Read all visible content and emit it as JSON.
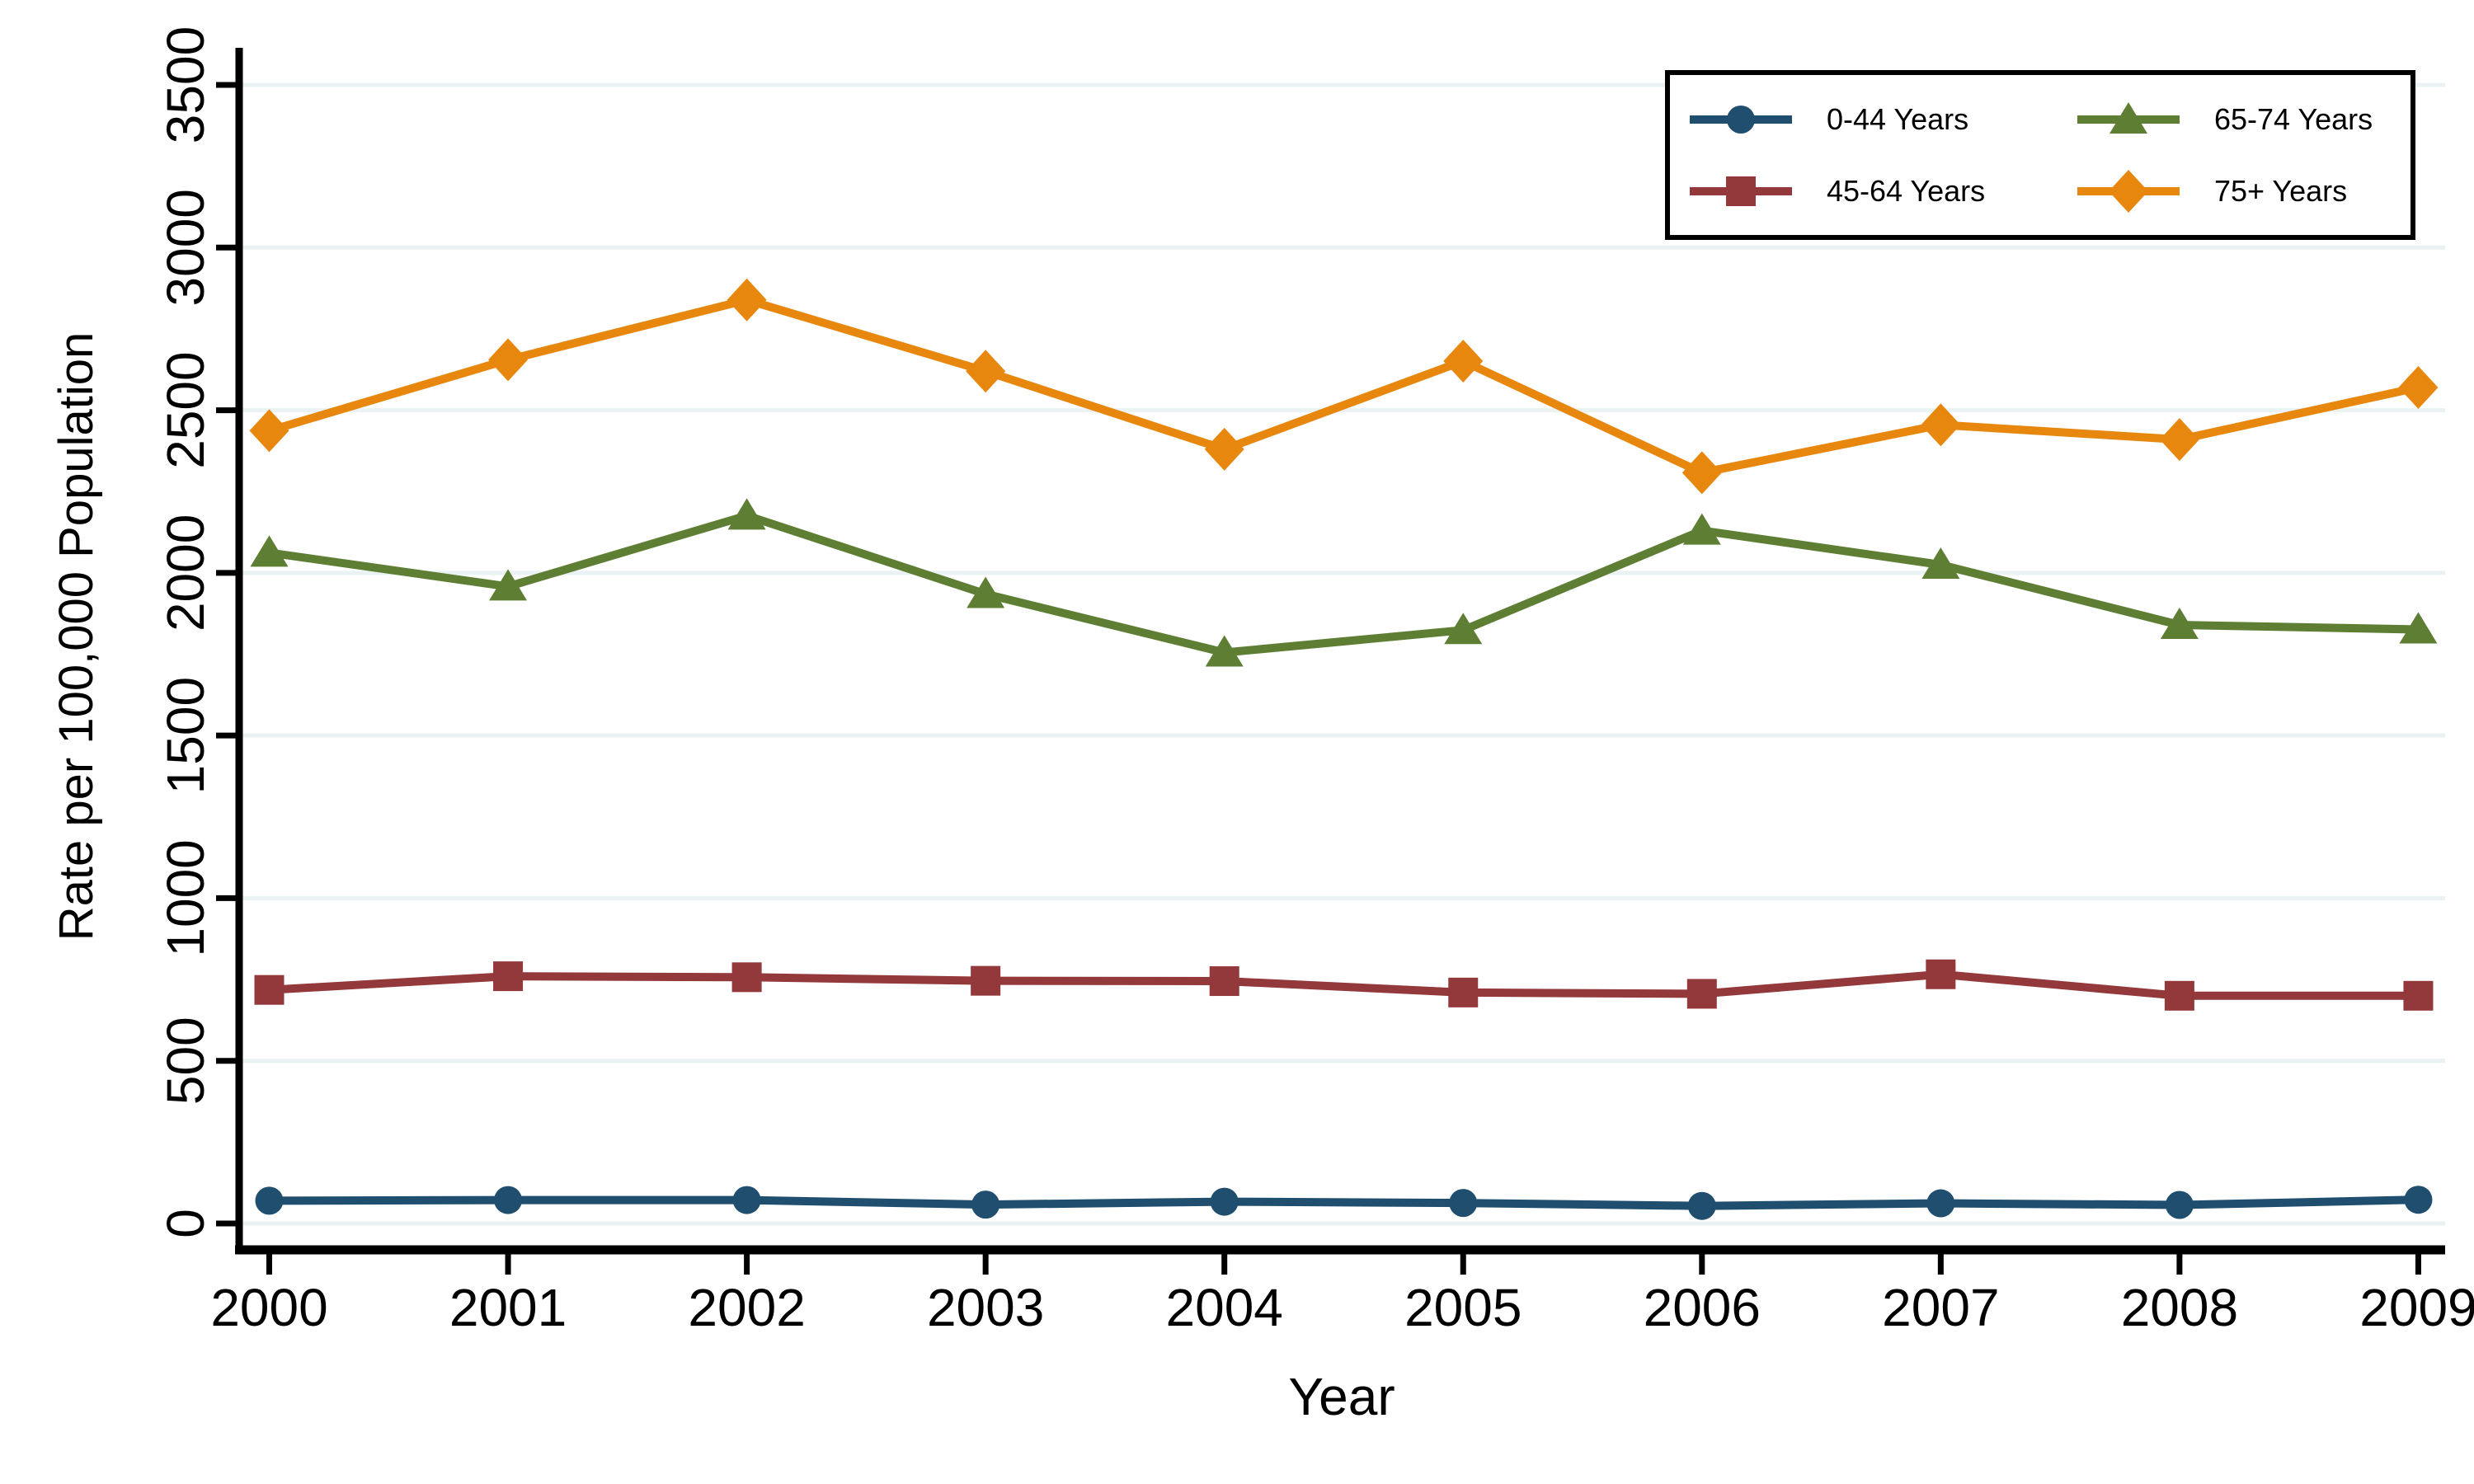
{
  "chart_data": {
    "type": "line",
    "title": "",
    "xlabel": "Year",
    "ylabel": "Rate per 100,000 Population",
    "x": [
      2000,
      2001,
      2002,
      2003,
      2004,
      2005,
      2006,
      2007,
      2008,
      2009
    ],
    "x_tick_labels": [
      "2000",
      "2001",
      "2002",
      "2003",
      "2004",
      "2005",
      "2006",
      "2007",
      "2008",
      "2009"
    ],
    "ylim": [
      0,
      3500
    ],
    "yticks": [
      0,
      500,
      1000,
      1500,
      2000,
      2500,
      3000,
      3500
    ],
    "y_tick_labels": [
      "0",
      "500",
      "1000",
      "1500",
      "2000",
      "2500",
      "3000",
      "3500"
    ],
    "grid": "horizontal-light",
    "legend_position": "top-right-inside",
    "background_color": "#ffffff",
    "gridline_color": "#EAF2F3",
    "axis_color": "#000000",
    "series": [
      {
        "name": "0-44 Years",
        "marker": "circle",
        "color": "#1F4E6E",
        "values": [
          70,
          72,
          72,
          58,
          67,
          63,
          54,
          62,
          57,
          73
        ]
      },
      {
        "name": "45-64 Years",
        "marker": "square",
        "color": "#93383B",
        "values": [
          718,
          760,
          757,
          746,
          745,
          710,
          706,
          766,
          700,
          700
        ]
      },
      {
        "name": "65-74 Years",
        "marker": "triangle",
        "color": "#5E7F33",
        "values": [
          2062,
          1958,
          2176,
          1935,
          1755,
          1824,
          2130,
          2025,
          1840,
          1826
        ]
      },
      {
        "name": "75+ Years",
        "marker": "diamond",
        "color": "#E8870E",
        "values": [
          2437,
          2655,
          2839,
          2620,
          2380,
          2651,
          2308,
          2455,
          2410,
          2570
        ]
      }
    ]
  }
}
